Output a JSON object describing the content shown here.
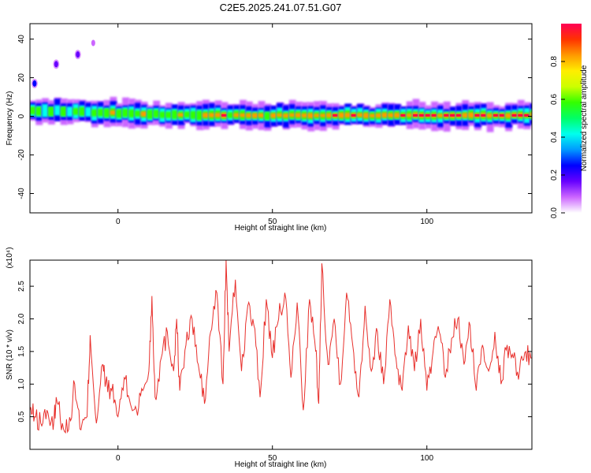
{
  "chart_data": [
    {
      "type": "heatmap",
      "title": "C2E5.2025.241.07.51.G07",
      "xlabel": "Height of straight line (km)",
      "ylabel": "Frequency (Hz)",
      "xlim": [
        -28.5,
        134
      ],
      "ylim": [
        -50,
        48
      ],
      "xticks": [
        0,
        50,
        100
      ],
      "yticks": [
        -40,
        -20,
        0,
        20,
        40
      ],
      "colorbar": {
        "label": "Normalized spectral amplitude",
        "range": [
          0,
          1
        ],
        "ticks": [
          "0.0",
          "0.2",
          "0.4",
          "0.6",
          "0.8"
        ],
        "colors": [
          "#ffffff",
          "#cc66ff",
          "#6600ff",
          "#0000ff",
          "#0099ff",
          "#00ffee",
          "#00ff66",
          "#33ff00",
          "#ccff00",
          "#ffee00",
          "#ff9900",
          "#ff3300",
          "#ff0055"
        ]
      },
      "features": [
        {
          "name": "main-band",
          "x_range": [
            -28.5,
            134
          ],
          "center_hz": [
            3,
            0.5
          ],
          "width_hz": 6
        },
        {
          "name": "isolated-blob",
          "x": -27,
          "y_hz": 17,
          "amplitude": 0.2
        },
        {
          "name": "isolated-blob",
          "x": -20,
          "y_hz": 27,
          "amplitude": 0.15
        },
        {
          "name": "isolated-blob",
          "x": -13,
          "y_hz": 32,
          "amplitude": 0.1
        },
        {
          "name": "isolated-blob",
          "x": -8,
          "y_hz": 38,
          "amplitude": 0.05
        }
      ]
    },
    {
      "type": "line",
      "xlabel": "Height of straight line (km)",
      "ylabel": "SNR (10 * v/v)",
      "scale_label": "(x10⁴)",
      "xlim": [
        -28.5,
        134
      ],
      "ylim": [
        0,
        2.9
      ],
      "xticks": [
        0,
        50,
        100
      ],
      "yticks": [
        "0.5",
        "1.0",
        "1.5",
        "2.0",
        "2.5"
      ],
      "series": [
        {
          "name": "SNR",
          "color": "#e8302c",
          "x": [
            -28.5,
            -27,
            -25,
            -23,
            -21,
            -20,
            -18,
            -16,
            -14,
            -12,
            -10,
            -9,
            -7,
            -5,
            -4,
            -2,
            0,
            2,
            4,
            6,
            8,
            10,
            11,
            12,
            14,
            16,
            18,
            19,
            20,
            22,
            24,
            26,
            28,
            30,
            32,
            34,
            35,
            36,
            38,
            40,
            42,
            44,
            46,
            48,
            50,
            52,
            54,
            56,
            58,
            60,
            62,
            64,
            65,
            66,
            68,
            70,
            72,
            74,
            76,
            78,
            80,
            82,
            84,
            86,
            88,
            90,
            92,
            94,
            96,
            98,
            100,
            102,
            104,
            106,
            108,
            110,
            112,
            114,
            116,
            118,
            120,
            122,
            124,
            126,
            128,
            130,
            132,
            134
          ],
          "values": [
            0.6,
            0.5,
            0.4,
            0.6,
            0.3,
            0.8,
            0.4,
            0.3,
            1.0,
            0.3,
            0.5,
            1.75,
            0.4,
            1.3,
            1.0,
            0.9,
            0.5,
            1.1,
            0.7,
            0.6,
            0.9,
            1.2,
            2.35,
            0.8,
            1.4,
            1.8,
            1.2,
            2.0,
            0.9,
            1.6,
            2.0,
            1.3,
            0.7,
            1.8,
            2.4,
            1.0,
            2.9,
            1.5,
            2.6,
            1.2,
            2.2,
            1.9,
            0.8,
            2.3,
            1.4,
            2.0,
            2.4,
            1.1,
            2.25,
            0.6,
            2.3,
            1.5,
            0.7,
            2.85,
            1.3,
            2.0,
            1.0,
            2.4,
            1.6,
            0.8,
            2.2,
            1.2,
            1.8,
            1.0,
            2.3,
            1.4,
            0.9,
            1.9,
            1.2,
            2.0,
            0.9,
            1.5,
            1.8,
            1.1,
            1.7,
            2.0,
            1.3,
            1.9,
            0.9,
            1.6,
            1.2,
            1.8,
            1.0,
            1.6,
            1.4,
            1.2,
            1.5,
            1.4
          ]
        }
      ]
    }
  ]
}
